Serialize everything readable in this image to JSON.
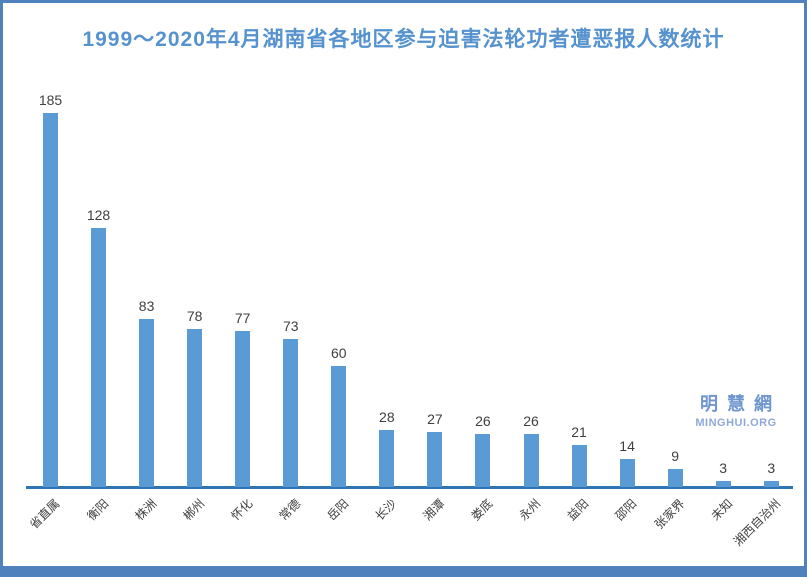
{
  "chart_data": {
    "type": "bar",
    "title": "1999～2020年4月湖南省各地区参与迫害法轮功者遭恶报人数统计",
    "categories": [
      "省直属",
      "衡阳",
      "株洲",
      "郴州",
      "怀化",
      "常德",
      "岳阳",
      "长沙",
      "湘潭",
      "娄底",
      "永州",
      "益阳",
      "邵阳",
      "张家界",
      "未知",
      "湘西自治州"
    ],
    "values": [
      185,
      128,
      83,
      78,
      77,
      73,
      60,
      28,
      27,
      26,
      26,
      21,
      14,
      9,
      3,
      3
    ],
    "xlabel": "",
    "ylabel": "",
    "ylim": [
      0,
      195
    ],
    "grid": false,
    "legend": "none",
    "value_labels_shown": true,
    "x_tick_rotation_deg": 45
  },
  "watermark": {
    "logo_text": "明慧網",
    "url_text": "MINGHUI.ORG"
  },
  "colors": {
    "bar": "#5b9bd5",
    "axis_line": "#2e75b6",
    "title_text": "#5592ce",
    "value_label_text": "#3f3f3f",
    "axis_label_text": "#404040",
    "border_and_bottom_bar": "#4f81bd",
    "watermark_cn": "#6f96cf",
    "watermark_en": "#8fa8d8",
    "background": "#ffffff"
  }
}
